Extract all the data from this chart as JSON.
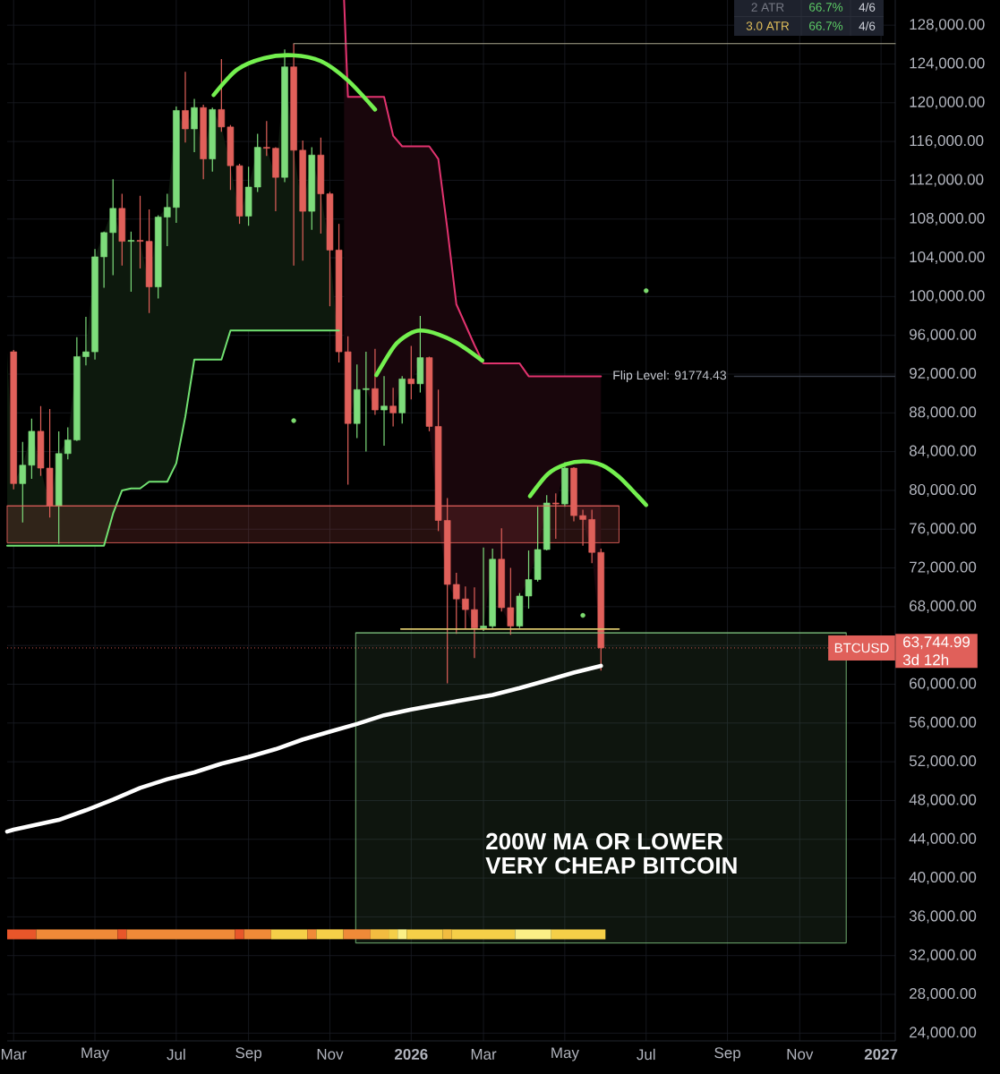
{
  "chart_data": {
    "type": "candlestick",
    "xlim": [
      "2025-02-26",
      "2027-01-15"
    ],
    "ylim": [
      23200,
      130600
    ],
    "xticks": [
      {
        "value": "2025-03-03",
        "label": "Mar"
      },
      {
        "value": "2025-05-05",
        "label": "May"
      },
      {
        "value": "2025-07-07",
        "label": "Jul"
      },
      {
        "value": "2025-09-01",
        "label": "Sep"
      },
      {
        "value": "2025-11-03",
        "label": "Nov"
      },
      {
        "value": "2026-01-05",
        "label": "2026"
      },
      {
        "value": "2026-03-02",
        "label": "Mar"
      },
      {
        "value": "2026-05-04",
        "label": "May"
      },
      {
        "value": "2026-07-06",
        "label": "Jul"
      },
      {
        "value": "2026-09-07",
        "label": "Sep"
      },
      {
        "value": "2026-11-02",
        "label": "Nov"
      },
      {
        "value": "2027-01-04",
        "label": "2027"
      }
    ],
    "yticks": [
      {
        "value": 24000,
        "label": "24,000.00"
      },
      {
        "value": 28000,
        "label": "28,000.00"
      },
      {
        "value": 32000,
        "label": "32,000.00"
      },
      {
        "value": 36000,
        "label": "36,000.00"
      },
      {
        "value": 40000,
        "label": "40,000.00"
      },
      {
        "value": 44000,
        "label": "44,000.00"
      },
      {
        "value": 48000,
        "label": "48,000.00"
      },
      {
        "value": 52000,
        "label": "52,000.00"
      },
      {
        "value": 56000,
        "label": "56,000.00"
      },
      {
        "value": 60000,
        "label": "60,000.00"
      },
      {
        "value": 64000,
        "label": null
      },
      {
        "value": 68000,
        "label": "68,000.00"
      },
      {
        "value": 72000,
        "label": "72,000.00"
      },
      {
        "value": 76000,
        "label": "76,000.00"
      },
      {
        "value": 80000,
        "label": "80,000.00"
      },
      {
        "value": 84000,
        "label": "84,000.00"
      },
      {
        "value": 88000,
        "label": "88,000.00"
      },
      {
        "value": 92000,
        "label": "92,000.00"
      },
      {
        "value": 96000,
        "label": "96,000.00"
      },
      {
        "value": 100000,
        "label": "100,000.00"
      },
      {
        "value": 104000,
        "label": "104,000.00"
      },
      {
        "value": 108000,
        "label": "108,000.00"
      },
      {
        "value": 112000,
        "label": "112,000.00"
      },
      {
        "value": 116000,
        "label": "116,000.00"
      },
      {
        "value": 120000,
        "label": "120,000.00"
      },
      {
        "value": 124000,
        "label": "124,000.00"
      },
      {
        "value": 128000,
        "label": "128,000.00"
      }
    ],
    "grid": true,
    "x": [
      "2025-03-03",
      "2025-03-10",
      "2025-03-17",
      "2025-03-24",
      "2025-03-31",
      "2025-04-07",
      "2025-04-14",
      "2025-04-21",
      "2025-04-28",
      "2025-05-05",
      "2025-05-12",
      "2025-05-19",
      "2025-05-26",
      "2025-06-02",
      "2025-06-09",
      "2025-06-16",
      "2025-06-23",
      "2025-06-30",
      "2025-07-07",
      "2025-07-14",
      "2025-07-21",
      "2025-07-28",
      "2025-08-04",
      "2025-08-11",
      "2025-08-18",
      "2025-08-25",
      "2025-09-01",
      "2025-09-08",
      "2025-09-15",
      "2025-09-22",
      "2025-09-29",
      "2025-10-06",
      "2025-10-13",
      "2025-10-20",
      "2025-10-27",
      "2025-11-03",
      "2025-11-10",
      "2025-11-17",
      "2025-11-24",
      "2025-12-01",
      "2025-12-08",
      "2025-12-15",
      "2025-12-22",
      "2025-12-29",
      "2026-01-05",
      "2026-01-12",
      "2026-01-19",
      "2026-01-26",
      "2026-02-02",
      "2026-02-09",
      "2026-02-16",
      "2026-02-23",
      "2026-03-02",
      "2026-03-09",
      "2026-03-16",
      "2026-03-23",
      "2026-03-30",
      "2026-04-06",
      "2026-04-13",
      "2026-04-20",
      "2026-04-27",
      "2026-05-04",
      "2026-05-11",
      "2026-05-18",
      "2026-05-25",
      "2026-06-01"
    ],
    "series": [
      {
        "ohlc": [
          [
            94300,
            94500,
            80100,
            80700
          ],
          [
            80700,
            85000,
            76700,
            82600
          ],
          [
            82600,
            87400,
            81200,
            86100
          ],
          [
            86100,
            88700,
            81500,
            82300
          ],
          [
            82300,
            88400,
            77200,
            78400
          ],
          [
            78400,
            86100,
            74500,
            83800
          ],
          [
            83800,
            86500,
            83200,
            85200
          ],
          [
            85200,
            95800,
            85100,
            93800
          ],
          [
            93800,
            97900,
            92900,
            94300
          ],
          [
            94300,
            104900,
            93500,
            104100
          ],
          [
            104100,
            106700,
            100900,
            106600
          ],
          [
            106600,
            112100,
            102200,
            109100
          ],
          [
            109100,
            110600,
            103200,
            105700
          ],
          [
            105700,
            106700,
            100500,
            105800
          ],
          [
            105800,
            110400,
            102900,
            105700
          ],
          [
            105700,
            109000,
            98300,
            101000
          ],
          [
            101000,
            108400,
            99800,
            108200
          ],
          [
            108200,
            110600,
            105200,
            109200
          ],
          [
            109200,
            119600,
            107600,
            119200
          ],
          [
            119200,
            123200,
            115900,
            117300
          ],
          [
            117300,
            120400,
            114900,
            119500
          ],
          [
            119500,
            119800,
            112100,
            114200
          ],
          [
            114200,
            119500,
            112900,
            119300
          ],
          [
            119300,
            124500,
            117000,
            117500
          ],
          [
            117500,
            117700,
            111000,
            113500
          ],
          [
            113500,
            113700,
            107500,
            108300
          ],
          [
            108300,
            113400,
            107300,
            111300
          ],
          [
            111300,
            116800,
            110800,
            115400
          ],
          [
            115400,
            118100,
            114500,
            115300
          ],
          [
            115300,
            115400,
            108800,
            112300
          ],
          [
            112300,
            125500,
            111800,
            123700
          ],
          [
            123700,
            126100,
            103200,
            115100
          ],
          [
            115100,
            116100,
            103700,
            108800
          ],
          [
            108800,
            115400,
            106900,
            114600
          ],
          [
            114600,
            116400,
            106500,
            110600
          ],
          [
            110600,
            110800,
            99000,
            104800
          ],
          [
            104800,
            107500,
            93200,
            94300
          ],
          [
            94300,
            95900,
            80600,
            86900
          ],
          [
            86900,
            93000,
            85400,
            90400
          ],
          [
            90400,
            94300,
            84000,
            90500
          ],
          [
            90500,
            94600,
            87800,
            88300
          ],
          [
            88300,
            91800,
            84600,
            88700
          ],
          [
            88700,
            90600,
            86600,
            88000
          ],
          [
            88000,
            91800,
            86900,
            91500
          ],
          [
            91500,
            94900,
            89400,
            91000
          ],
          [
            91000,
            98000,
            90100,
            93700
          ],
          [
            93700,
            93800,
            86100,
            86600
          ],
          [
            86600,
            90400,
            75800,
            76900
          ],
          [
            76900,
            79200,
            60100,
            70300
          ],
          [
            70300,
            71500,
            65200,
            68800
          ],
          [
            68800,
            70100,
            65700,
            67700
          ],
          [
            67700,
            70000,
            62700,
            65800
          ],
          [
            65800,
            74100,
            65500,
            66000
          ],
          [
            66000,
            74000,
            65800,
            72900
          ],
          [
            72900,
            76100,
            67500,
            67900
          ],
          [
            67900,
            72000,
            65100,
            66000
          ],
          [
            66000,
            69400,
            65800,
            69100
          ],
          [
            69100,
            73800,
            67800,
            70800
          ],
          [
            70800,
            78300,
            70600,
            73900
          ],
          [
            73900,
            79500,
            73800,
            78700
          ],
          [
            78700,
            79700,
            75000,
            78600
          ],
          [
            78600,
            82900,
            78300,
            82300
          ],
          [
            82300,
            82400,
            76800,
            77400
          ],
          [
            77400,
            78000,
            74300,
            77000
          ],
          [
            77000,
            78000,
            72500,
            73600
          ],
          [
            73600,
            74000,
            61400,
            63744.99
          ]
        ],
        "colors": [
          "#e0605a",
          "#7ddc7b",
          "#7ddc7b",
          "#e0605a",
          "#e0605a",
          "#7ddc7b",
          "#7ddc7b",
          "#7ddc7b",
          "#7ddc7b",
          "#7ddc7b",
          "#7ddc7b",
          "#7ddc7b",
          "#e0605a",
          "#7ddc7b",
          "#e0605a",
          "#e0605a",
          "#7ddc7b",
          "#7ddc7b",
          "#7ddc7b",
          "#e0605a",
          "#7ddc7b",
          "#e0605a",
          "#7ddc7b",
          "#e0605a",
          "#e0605a",
          "#e0605a",
          "#7ddc7b",
          "#7ddc7b",
          "#e0605a",
          "#e0605a",
          "#7ddc7b",
          "#e0605a",
          "#e0605a",
          "#7ddc7b",
          "#e0605a",
          "#e0605a",
          "#e0605a",
          "#e0605a",
          "#7ddc7b",
          "#7ddc7b",
          "#e0605a",
          "#7ddc7b",
          "#e0605a",
          "#7ddc7b",
          "#e0605a",
          "#7ddc7b",
          "#e0605a",
          "#e0605a",
          "#e0605a",
          "#e0605a",
          "#e0605a",
          "#e0605a",
          "#7ddc7b",
          "#7ddc7b",
          "#e0605a",
          "#e0605a",
          "#7ddc7b",
          "#7ddc7b",
          "#7ddc7b",
          "#7ddc7b",
          "#e0605a",
          "#7ddc7b",
          "#e0605a",
          "#e0605a",
          "#e0605a",
          "#e0605a"
        ]
      },
      {
        "type": "line",
        "color": "#72e272",
        "x": [
          "2025-02-26",
          "2025-03-03",
          "2025-03-10",
          "2025-03-17",
          "2025-03-24",
          "2025-03-31",
          "2025-04-07",
          "2025-04-14",
          "2025-04-21",
          "2025-04-28",
          "2025-05-05",
          "2025-05-12",
          "2025-05-19",
          "2025-05-26",
          "2025-06-02",
          "2025-06-09",
          "2025-06-16",
          "2025-06-23",
          "2025-06-30",
          "2025-07-07",
          "2025-07-14",
          "2025-07-21",
          "2025-07-28",
          "2025-08-04",
          "2025-08-11",
          "2025-08-18",
          "2025-08-25",
          "2025-09-01",
          "2025-09-08",
          "2025-09-15",
          "2025-09-22",
          "2025-09-29",
          "2025-10-06",
          "2025-10-13",
          "2025-10-20",
          "2025-10-27",
          "2025-11-03",
          "2025-11-10"
        ],
        "values": [
          74300,
          74300,
          74300,
          74300,
          74300,
          74300,
          74300,
          74300,
          74300,
          74300,
          74300,
          74300,
          77600,
          80000,
          80200,
          80200,
          80900,
          80900,
          80900,
          82800,
          87600,
          93500,
          93500,
          93500,
          93500,
          96500,
          96500,
          96500,
          96500,
          96500,
          96500,
          96500,
          96500,
          96500,
          96500,
          96500,
          96500,
          96500
        ],
        "lower": [
          74300,
          74300,
          74300,
          74300,
          74300,
          74300,
          74300,
          74300,
          74300,
          74300,
          74300,
          74300,
          77600,
          80000,
          80200,
          80200,
          80900,
          80900,
          80900,
          82800,
          87600,
          93500,
          93500,
          93500,
          93500,
          96500,
          96500,
          96500,
          96500,
          96500,
          96500,
          96500,
          96500,
          96500,
          96500,
          96500,
          96500,
          96500
        ],
        "upper": [
          94300,
          80700,
          82600,
          86100,
          82300,
          78400,
          83800,
          85200,
          93800,
          94300,
          104100,
          106600,
          109100,
          105700,
          105800,
          105700,
          101000,
          108200,
          109200,
          119200,
          117300,
          119500,
          114200,
          119300,
          117500,
          113500,
          108300,
          111300,
          115400,
          115300,
          112300,
          123700,
          115100,
          108800,
          114600,
          110600,
          104800,
          94300
        ]
      },
      {
        "type": "line",
        "color": "#e2336f",
        "x": [
          "2025-11-14",
          "2025-11-17",
          "2025-11-24",
          "2025-12-01",
          "2025-12-08",
          "2025-12-15",
          "2025-12-22",
          "2025-12-29",
          "2026-01-05",
          "2026-01-12",
          "2026-01-19",
          "2026-01-26",
          "2026-02-02",
          "2026-02-09",
          "2026-02-16",
          "2026-02-23",
          "2026-03-02",
          "2026-03-09",
          "2026-03-16",
          "2026-03-23",
          "2026-03-30",
          "2026-04-06",
          "2026-04-13",
          "2026-04-20",
          "2026-04-27",
          "2026-05-04",
          "2026-05-11",
          "2026-05-18",
          "2026-05-25",
          "2026-06-01"
        ],
        "values": [
          130600,
          120600,
          120600,
          120600,
          120600,
          120600,
          116600,
          115500,
          115500,
          115500,
          115500,
          114200,
          107000,
          99200,
          97100,
          95000,
          93100,
          93100,
          93100,
          93100,
          93100,
          91774.43,
          91774.43,
          91774.43,
          91774.43,
          91774.43,
          91774.43,
          91774.43,
          91774.43,
          91774.43
        ],
        "lower": [
          94300,
          86900,
          90400,
          90500,
          88300,
          88700,
          88000,
          91500,
          91000,
          93700,
          86600,
          76900,
          70300,
          68800,
          67700,
          65800,
          66000,
          72900,
          67900,
          66000,
          69100,
          70800,
          73900,
          78700,
          78600,
          82300,
          77400,
          77000,
          73600,
          63744.99
        ],
        "upper": [
          130600,
          120600,
          120600,
          120600,
          120600,
          120600,
          116600,
          115500,
          115500,
          115500,
          115500,
          114200,
          107000,
          99200,
          97100,
          95000,
          93100,
          93100,
          93100,
          93100,
          93100,
          91774.43,
          91774.43,
          91774.43,
          91774.43,
          91774.43,
          91774.43,
          91774.43,
          91774.43,
          91774.43
        ]
      },
      {
        "type": "line",
        "color": "#ffffff",
        "x": [
          "2025-02-26",
          "2025-03-03",
          "2025-04-07",
          "2025-04-28",
          "2025-05-19",
          "2025-06-09",
          "2025-06-30",
          "2025-07-21",
          "2025-08-11",
          "2025-09-01",
          "2025-09-22",
          "2025-10-13",
          "2025-11-03",
          "2025-11-24",
          "2025-12-15",
          "2026-01-05",
          "2026-01-26",
          "2026-02-16",
          "2026-03-09",
          "2026-03-30",
          "2026-04-20",
          "2026-05-11",
          "2026-06-01"
        ],
        "values": [
          44800,
          45000,
          46000,
          47000,
          48100,
          49300,
          50200,
          50900,
          51800,
          52500,
          53300,
          54300,
          55100,
          55900,
          56800,
          57400,
          57900,
          58400,
          58900,
          59600,
          60400,
          61200,
          61900
        ]
      },
      {
        "type": "line",
        "color": "#a9a68e",
        "x": [
          "2025-10-06",
          "2027-01-15"
        ],
        "values": [
          126100,
          126100
        ]
      },
      {
        "type": "line",
        "color": "#d9c56b",
        "x": [
          "2025-12-28",
          "2026-06-15"
        ],
        "values": [
          65700,
          65700
        ]
      },
      {
        "type": "line",
        "color": "#74f04f",
        "x": [
          "2025-08-05",
          "2025-08-23",
          "2025-09-13",
          "2025-10-05",
          "2025-10-27",
          "2025-11-17",
          "2025-12-08"
        ],
        "values": [
          120800,
          123400,
          124600,
          124900,
          124300,
          122300,
          119300
        ]
      },
      {
        "type": "line",
        "color": "#74f04f",
        "x": [
          "2025-12-09",
          "2025-12-23",
          "2026-01-03",
          "2026-01-12",
          "2026-01-26",
          "2026-02-11",
          "2026-03-01"
        ],
        "values": [
          91900,
          94900,
          96100,
          96500,
          96100,
          95100,
          93400
        ]
      },
      {
        "type": "line",
        "color": "#74f04f",
        "x": [
          "2026-04-07",
          "2026-04-21",
          "2026-05-05",
          "2026-05-19",
          "2026-06-02",
          "2026-06-15",
          "2026-06-29",
          "2026-07-06"
        ],
        "values": [
          79400,
          81700,
          82700,
          83000,
          82600,
          81400,
          79500,
          78500
        ]
      },
      {
        "type": "scatter",
        "color": "#7ddc6f",
        "marker": "circle",
        "x": [
          "2025-10-06",
          "2026-05-18",
          "2026-07-06"
        ],
        "values": [
          87200,
          67100,
          100600
        ]
      },
      {
        "type": "line",
        "color": "#e0605a",
        "x": [
          "2025-02-26",
          "2026-06-15"
        ],
        "values": [
          78400,
          78400
        ],
        "lower": [
          74600,
          74600
        ],
        "upper": [
          78400,
          78400
        ]
      },
      {
        "type": "line",
        "color": "#7cc07c",
        "x": [
          "2025-11-23",
          "2026-12-08"
        ],
        "values": [
          65300,
          65300
        ],
        "lower": [
          33300,
          33300
        ],
        "upper": [
          65300,
          65300
        ]
      },
      {
        "type": "line",
        "color": "#e8562a",
        "x": [
          "2025-02-26",
          "2025-03-20T12:00"
        ],
        "values": [
          34200,
          34200
        ]
      },
      {
        "type": "line",
        "color": "#ef8a38",
        "x": [
          "2025-03-20T12:00",
          "2025-05-22T12:00"
        ],
        "values": [
          34200,
          34200
        ]
      },
      {
        "type": "line",
        "color": "#e8562a",
        "x": [
          "2025-05-22T12:00",
          "2025-05-29T12:00"
        ],
        "values": [
          34200,
          34200
        ]
      },
      {
        "type": "line",
        "color": "#ef8a38",
        "x": [
          "2025-05-29T12:00",
          "2025-08-21T12:00"
        ],
        "values": [
          34200,
          34200
        ]
      },
      {
        "type": "line",
        "color": "#e8562a",
        "x": [
          "2025-08-21T12:00",
          "2025-08-28T12:00"
        ],
        "values": [
          34200,
          34200
        ]
      },
      {
        "type": "line",
        "color": "#ef8a38",
        "x": [
          "2025-08-28T12:00",
          "2025-09-18T12:00"
        ],
        "values": [
          34200,
          34200
        ]
      },
      {
        "type": "line",
        "color": "#f5cf48",
        "x": [
          "2025-09-18T12:00",
          "2025-10-16T12:00"
        ],
        "values": [
          34200,
          34200
        ]
      },
      {
        "type": "line",
        "color": "#ef8a38",
        "x": [
          "2025-10-16T12:00",
          "2025-10-23T12:00"
        ],
        "values": [
          34200,
          34200
        ]
      },
      {
        "type": "line",
        "color": "#f5cf48",
        "x": [
          "2025-10-23T12:00",
          "2025-11-13T12:00"
        ],
        "values": [
          34200,
          34200
        ]
      },
      {
        "type": "line",
        "color": "#ef8a38",
        "x": [
          "2025-11-13T12:00",
          "2025-12-04T12:00"
        ],
        "values": [
          34200,
          34200
        ]
      },
      {
        "type": "line",
        "color": "#f2bc40",
        "x": [
          "2025-12-04T12:00",
          "2025-12-18T12:00"
        ],
        "values": [
          34200,
          34200
        ]
      },
      {
        "type": "line",
        "color": "#f5cf48",
        "x": [
          "2025-12-18T12:00",
          "2025-12-25T12:00"
        ],
        "values": [
          34200,
          34200
        ]
      },
      {
        "type": "line",
        "color": "#fbef86",
        "x": [
          "2025-12-25T12:00",
          "2026-01-01T12:00"
        ],
        "values": [
          34200,
          34200
        ]
      },
      {
        "type": "line",
        "color": "#f5cf48",
        "x": [
          "2026-01-01T12:00",
          "2026-01-29T12:00"
        ],
        "values": [
          34200,
          34200
        ]
      },
      {
        "type": "line",
        "color": "#f2bc40",
        "x": [
          "2026-01-29T12:00",
          "2026-02-05T12:00"
        ],
        "values": [
          34200,
          34200
        ]
      },
      {
        "type": "line",
        "color": "#f5cf48",
        "x": [
          "2026-02-05T12:00",
          "2026-03-26T12:00"
        ],
        "values": [
          34200,
          34200
        ]
      },
      {
        "type": "line",
        "color": "#fbef86",
        "x": [
          "2026-03-26T12:00",
          "2026-04-23T12:00"
        ],
        "values": [
          34200,
          34200
        ]
      },
      {
        "type": "line",
        "color": "#f5cf48",
        "x": [
          "2026-04-23T12:00",
          "2026-06-04T12:00"
        ],
        "values": [
          34200,
          34200
        ]
      }
    ],
    "ref_lines": [
      {
        "axis": "y",
        "value": 91774.43,
        "label": "Flip Level: 91774.43",
        "color": "#363a45",
        "line_style": "solid"
      },
      {
        "axis": "y",
        "value": 63744.99,
        "label": "BTCUSD",
        "color": "#e0605a",
        "line_style": "dotted"
      }
    ],
    "annotations": [
      "2 ATR",
      "66.7%",
      "4/6",
      "3.0 ATR",
      "66.7%",
      "4/6",
      "200W MA OR LOWER",
      "VERY CHEAP BITCOIN",
      "63,744.99",
      "3d 12h"
    ]
  }
}
